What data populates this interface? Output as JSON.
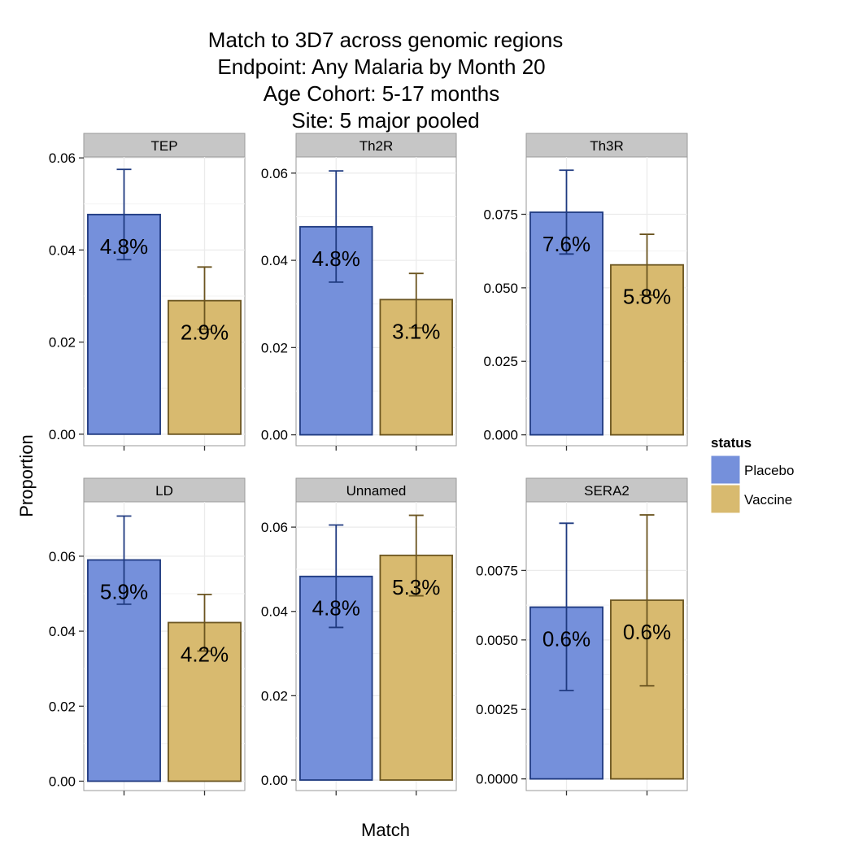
{
  "title_lines": [
    "Match to 3D7 across genomic regions",
    "Endpoint: Any Malaria by Month 20",
    "Age Cohort: 5-17 months",
    "Site: 5 major pooled"
  ],
  "colors": {
    "placebo_fill": "#7590DB",
    "placebo_stroke": "#1F3A80",
    "vaccine_fill": "#D8BA6F",
    "vaccine_stroke": "#6B5520",
    "strip_bg": "#C6C6C6",
    "grid": "#EBEBEB"
  },
  "chart_data": {
    "type": "bar",
    "xlabel": "Match",
    "ylabel": "Proportion",
    "legend": {
      "title": "status",
      "position": "right",
      "entries": [
        "Placebo",
        "Vaccine"
      ]
    },
    "grid": true,
    "panels": [
      {
        "name": "TEP",
        "ylim": [
          -0.0025,
          0.0602
        ],
        "yticks": [
          0,
          0.02,
          0.04,
          0.06
        ],
        "yticklabels": [
          "0.00",
          "0.02",
          "0.04",
          "0.06"
        ],
        "series": [
          {
            "name": "Placebo",
            "value": 0.0477,
            "lower": 0.0379,
            "upper": 0.0575,
            "label": "4.8%"
          },
          {
            "name": "Vaccine",
            "value": 0.029,
            "lower": 0.0228,
            "upper": 0.0363,
            "label": "2.9%"
          }
        ]
      },
      {
        "name": "Th2R",
        "ylim": [
          -0.0025,
          0.0637
        ],
        "yticks": [
          0,
          0.02,
          0.04,
          0.06
        ],
        "yticklabels": [
          "0.00",
          "0.02",
          "0.04",
          "0.06"
        ],
        "series": [
          {
            "name": "Placebo",
            "value": 0.0477,
            "lower": 0.035,
            "upper": 0.0605,
            "label": "4.8%"
          },
          {
            "name": "Vaccine",
            "value": 0.031,
            "lower": 0.0245,
            "upper": 0.037,
            "label": "3.1%"
          }
        ]
      },
      {
        "name": "Th3R",
        "ylim": [
          -0.0037,
          0.0945
        ],
        "yticks": [
          0,
          0.025,
          0.05,
          0.075
        ],
        "yticklabels": [
          "0.000",
          "0.025",
          "0.050",
          "0.075"
        ],
        "series": [
          {
            "name": "Placebo",
            "value": 0.0757,
            "lower": 0.0615,
            "upper": 0.09,
            "label": "7.6%"
          },
          {
            "name": "Vaccine",
            "value": 0.0578,
            "lower": 0.0475,
            "upper": 0.0682,
            "label": "5.8%"
          }
        ]
      },
      {
        "name": "LD",
        "ylim": [
          -0.0025,
          0.0745
        ],
        "yticks": [
          0,
          0.02,
          0.04,
          0.06
        ],
        "yticklabels": [
          "0.00",
          "0.02",
          "0.04",
          "0.06"
        ],
        "series": [
          {
            "name": "Placebo",
            "value": 0.059,
            "lower": 0.0472,
            "upper": 0.0707,
            "label": "5.9%"
          },
          {
            "name": "Vaccine",
            "value": 0.0423,
            "lower": 0.0347,
            "upper": 0.0498,
            "label": "4.2%"
          }
        ]
      },
      {
        "name": "Unnamed",
        "ylim": [
          -0.0025,
          0.066
        ],
        "yticks": [
          0,
          0.02,
          0.04,
          0.06
        ],
        "yticklabels": [
          "0.00",
          "0.02",
          "0.04",
          "0.06"
        ],
        "series": [
          {
            "name": "Placebo",
            "value": 0.0483,
            "lower": 0.0362,
            "upper": 0.0605,
            "label": "4.8%"
          },
          {
            "name": "Vaccine",
            "value": 0.0533,
            "lower": 0.0437,
            "upper": 0.0628,
            "label": "5.3%"
          }
        ]
      },
      {
        "name": "SERA2",
        "ylim": [
          -0.00042,
          0.00997
        ],
        "yticks": [
          0,
          0.0025,
          0.005,
          0.0075
        ],
        "yticklabels": [
          "0.0000",
          "0.0025",
          "0.0050",
          "0.0075"
        ],
        "series": [
          {
            "name": "Placebo",
            "value": 0.00618,
            "lower": 0.00318,
            "upper": 0.0092,
            "label": "0.6%"
          },
          {
            "name": "Vaccine",
            "value": 0.00643,
            "lower": 0.00335,
            "upper": 0.0095,
            "label": "0.6%"
          }
        ]
      }
    ]
  }
}
